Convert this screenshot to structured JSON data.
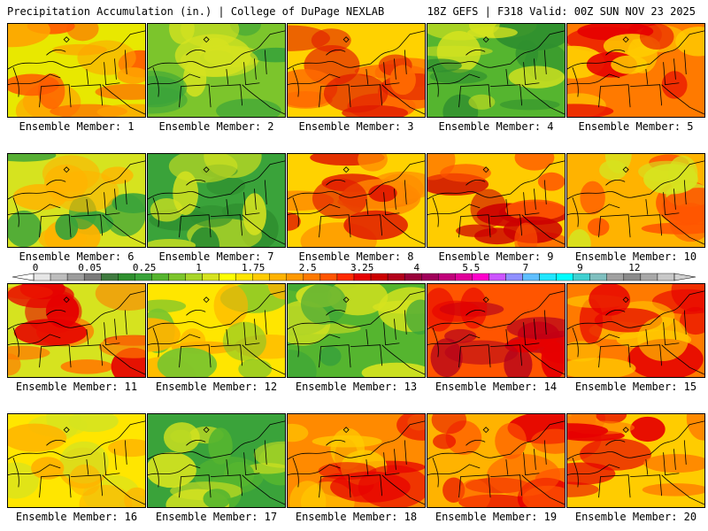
{
  "header": {
    "left": "Precipitation Accumulation (in.) | College of DuPage NEXLAB",
    "right": "18Z GEFS | F318 Valid: 00Z SUN NOV 23 2025"
  },
  "colorbar": {
    "ticks": [
      "0",
      "0.05",
      "0.25",
      "1",
      "1.75",
      "2.5",
      "3.25",
      "4",
      "5.5",
      "7",
      "9",
      "12"
    ],
    "colors": [
      "#e6e6e6",
      "#bdbdbd",
      "#9c9c9c",
      "#7a7a7a",
      "#3f7a3f",
      "#2f8f2f",
      "#3aa33a",
      "#55b52f",
      "#7cc52c",
      "#a9d62a",
      "#d6e31f",
      "#ffff00",
      "#ffe600",
      "#ffcc00",
      "#ffb300",
      "#ff9900",
      "#ff7a00",
      "#ff5500",
      "#ff2a00",
      "#e60000",
      "#cc0000",
      "#b3001b",
      "#99003a",
      "#a0005a",
      "#c0007a",
      "#e0009a",
      "#ff00cc",
      "#cc55ff",
      "#8f8fff",
      "#5fbfff",
      "#22e6ff",
      "#00ffff",
      "#40d0d0",
      "#7fbfbf",
      "#a0a0a0",
      "#8a8a8a",
      "#a8a8a8",
      "#c8c8c8"
    ]
  },
  "members": [
    {
      "label": "Ensemble Member: 1",
      "palette": [
        "#e8e800",
        "#ffa200",
        "#ff5a00"
      ]
    },
    {
      "label": "Ensemble Member: 2",
      "palette": [
        "#7cc52c",
        "#3aa33a",
        "#d6e31f"
      ]
    },
    {
      "label": "Ensemble Member: 3",
      "palette": [
        "#ffd200",
        "#ff6a00",
        "#e01a00"
      ]
    },
    {
      "label": "Ensemble Member: 4",
      "palette": [
        "#55b52f",
        "#2f8f2f",
        "#d6e31f"
      ]
    },
    {
      "label": "Ensemble Member: 5",
      "palette": [
        "#ff7a00",
        "#e60000",
        "#ffcc00"
      ]
    },
    {
      "label": "Ensemble Member: 6",
      "palette": [
        "#d6e31f",
        "#ffb300",
        "#3aa33a"
      ]
    },
    {
      "label": "Ensemble Member: 7",
      "palette": [
        "#3aa33a",
        "#2f8f2f",
        "#d6e31f"
      ]
    },
    {
      "label": "Ensemble Member: 8",
      "palette": [
        "#ffd200",
        "#ff8a00",
        "#e01a00"
      ]
    },
    {
      "label": "Ensemble Member: 9",
      "palette": [
        "#ffcc00",
        "#ff5500",
        "#cc0000"
      ]
    },
    {
      "label": "Ensemble Member: 10",
      "palette": [
        "#ffb300",
        "#ff5500",
        "#d6e31f"
      ]
    },
    {
      "label": "Ensemble Member: 11",
      "palette": [
        "#d6e31f",
        "#ff7a00",
        "#e60000"
      ]
    },
    {
      "label": "Ensemble Member: 12",
      "palette": [
        "#ffe600",
        "#ffb300",
        "#7cc52c"
      ]
    },
    {
      "label": "Ensemble Member: 13",
      "palette": [
        "#55b52f",
        "#d6e31f",
        "#3aa33a"
      ]
    },
    {
      "label": "Ensemble Member: 14",
      "palette": [
        "#ff5500",
        "#e60000",
        "#b3001b"
      ]
    },
    {
      "label": "Ensemble Member: 15",
      "palette": [
        "#ff7a00",
        "#e60000",
        "#ffcc00"
      ]
    },
    {
      "label": "Ensemble Member: 16",
      "palette": [
        "#ffe600",
        "#d6e31f",
        "#ffb300"
      ]
    },
    {
      "label": "Ensemble Member: 17",
      "palette": [
        "#3aa33a",
        "#55b52f",
        "#d6e31f"
      ]
    },
    {
      "label": "Ensemble Member: 18",
      "palette": [
        "#ff8a00",
        "#e60000",
        "#ffcc00"
      ]
    },
    {
      "label": "Ensemble Member: 19",
      "palette": [
        "#ffb300",
        "#ff5500",
        "#e60000"
      ]
    },
    {
      "label": "Ensemble Member: 20",
      "palette": [
        "#ffcc00",
        "#ff7a00",
        "#e60000"
      ]
    }
  ]
}
